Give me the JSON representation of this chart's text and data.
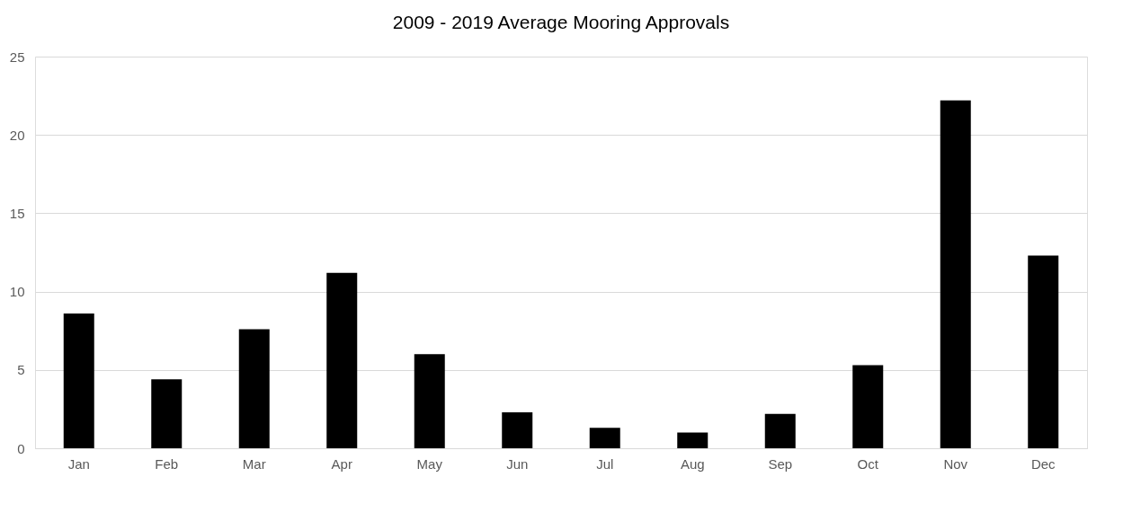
{
  "chart_data": {
    "type": "bar",
    "title": "2009 - 2019 Average Mooring Approvals",
    "categories": [
      "Jan",
      "Feb",
      "Mar",
      "Apr",
      "May",
      "Jun",
      "Jul",
      "Aug",
      "Sep",
      "Oct",
      "Nov",
      "Dec"
    ],
    "values": [
      8.6,
      4.4,
      7.6,
      11.2,
      6.0,
      2.3,
      1.3,
      1.0,
      2.2,
      5.3,
      22.2,
      12.3
    ],
    "color": "#000000",
    "ylim": [
      0,
      25
    ],
    "yticks": [
      0,
      5,
      10,
      15,
      20,
      25
    ],
    "grid": "y"
  }
}
